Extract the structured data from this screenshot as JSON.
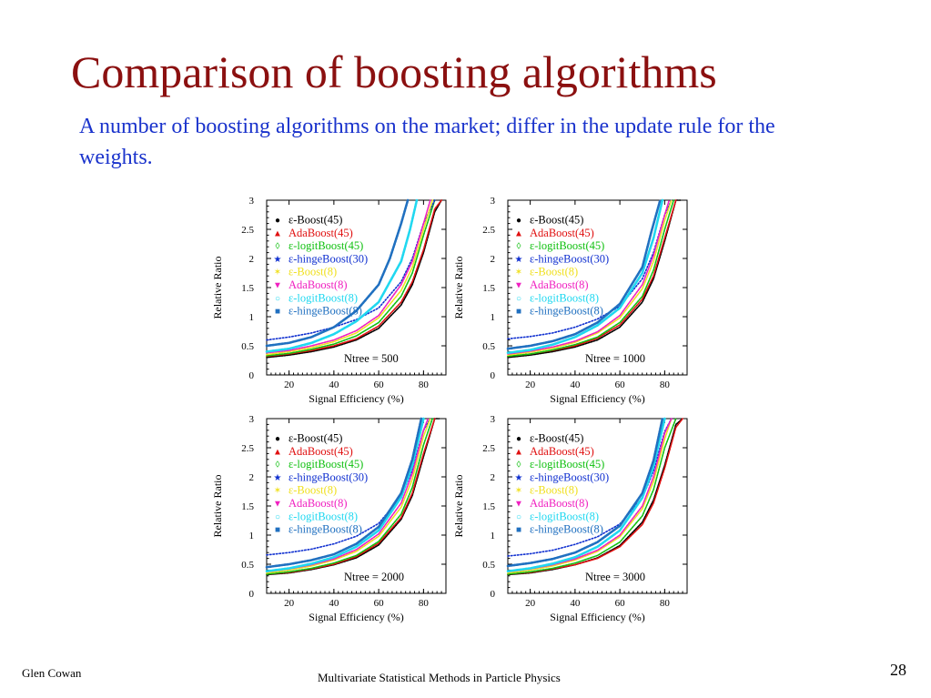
{
  "slide": {
    "title": "Comparison of boosting algorithms",
    "subtitle": "A number of boosting algorithms on the market; differ in the update rule for the weights.",
    "footer_author": "Glen Cowan",
    "footer_course": "Multivariate Statistical Methods in Particle Physics",
    "page_number": "28"
  },
  "chart_data": [
    {
      "type": "line",
      "annotation": "Ntree = 500",
      "xlabel": "Signal Efficiency (%)",
      "ylabel": "Relative Ratio",
      "xlim": [
        10,
        90
      ],
      "ylim": [
        0,
        3
      ],
      "x_ticks": [
        "20",
        "40",
        "60",
        "80"
      ],
      "y_ticks": [
        "0",
        "0.5",
        "1",
        "1.5",
        "2",
        "2.5",
        "3"
      ],
      "legend_position": "top-left",
      "series": [
        {
          "name": "ε-Boost(45)",
          "color": "#000000",
          "marker": "●",
          "x": [
            10,
            20,
            30,
            40,
            50,
            60,
            70,
            75,
            80,
            85,
            88
          ],
          "y": [
            0.3,
            0.34,
            0.4,
            0.48,
            0.6,
            0.8,
            1.2,
            1.55,
            2.1,
            2.8,
            3.0
          ]
        },
        {
          "name": "AdaBoost(45)",
          "color": "#e01010",
          "marker": "▲",
          "x": [
            10,
            20,
            30,
            40,
            50,
            60,
            70,
            75,
            80,
            85,
            88
          ],
          "y": [
            0.32,
            0.36,
            0.42,
            0.5,
            0.62,
            0.84,
            1.25,
            1.6,
            2.15,
            2.85,
            3.0
          ]
        },
        {
          "name": "ε-logitBoost(45)",
          "color": "#10c010",
          "marker": "◊",
          "x": [
            10,
            20,
            30,
            40,
            50,
            60,
            70,
            75,
            80,
            85
          ],
          "y": [
            0.33,
            0.37,
            0.44,
            0.53,
            0.67,
            0.9,
            1.35,
            1.75,
            2.4,
            3.0
          ]
        },
        {
          "name": "ε-hingeBoost(30)",
          "color": "#1030d0",
          "marker": "★",
          "x": [
            10,
            20,
            30,
            40,
            50,
            60,
            70,
            75,
            80,
            85
          ],
          "y": [
            0.6,
            0.65,
            0.72,
            0.82,
            0.95,
            1.15,
            1.6,
            2.0,
            2.6,
            3.0
          ]
        },
        {
          "name": "ε-Boost(8)",
          "color": "#f0e020",
          "marker": "✶",
          "x": [
            10,
            20,
            30,
            40,
            50,
            60,
            70,
            75,
            80,
            84
          ],
          "y": [
            0.35,
            0.4,
            0.47,
            0.57,
            0.72,
            0.98,
            1.45,
            1.85,
            2.5,
            3.0
          ]
        },
        {
          "name": "AdaBoost(8)",
          "color": "#f020c0",
          "marker": "▼",
          "x": [
            10,
            20,
            30,
            40,
            50,
            60,
            70,
            75,
            80,
            83
          ],
          "y": [
            0.38,
            0.42,
            0.5,
            0.6,
            0.76,
            1.02,
            1.55,
            1.95,
            2.6,
            3.0
          ]
        },
        {
          "name": "ε-logitBoost(8)",
          "color": "#20d8f0",
          "marker": "○",
          "x": [
            10,
            20,
            30,
            40,
            50,
            60,
            70,
            74,
            77
          ],
          "y": [
            0.4,
            0.45,
            0.55,
            0.7,
            0.92,
            1.25,
            1.95,
            2.5,
            3.0
          ]
        },
        {
          "name": "ε-hingeBoost(8)",
          "color": "#2070c0",
          "marker": "■",
          "x": [
            10,
            20,
            30,
            40,
            50,
            60,
            65,
            70,
            73
          ],
          "y": [
            0.5,
            0.55,
            0.65,
            0.82,
            1.1,
            1.55,
            2.0,
            2.6,
            3.0
          ]
        }
      ]
    },
    {
      "type": "line",
      "annotation": "Ntree = 1000",
      "xlabel": "Signal Efficiency (%)",
      "ylabel": "Relative Ratio",
      "xlim": [
        10,
        90
      ],
      "ylim": [
        0,
        3
      ],
      "x_ticks": [
        "20",
        "40",
        "60",
        "80"
      ],
      "y_ticks": [
        "0",
        "0.5",
        "1",
        "1.5",
        "2",
        "2.5",
        "3"
      ],
      "legend_position": "top-left",
      "series": [
        {
          "name": "ε-Boost(45)",
          "color": "#000000",
          "marker": "●",
          "x": [
            10,
            20,
            30,
            40,
            50,
            60,
            70,
            75,
            80,
            85,
            87
          ],
          "y": [
            0.3,
            0.34,
            0.4,
            0.48,
            0.6,
            0.82,
            1.25,
            1.65,
            2.3,
            3.0,
            3.0
          ]
        },
        {
          "name": "AdaBoost(45)",
          "color": "#e01010",
          "marker": "▲",
          "x": [
            10,
            20,
            30,
            40,
            50,
            60,
            70,
            75,
            80,
            85
          ],
          "y": [
            0.32,
            0.36,
            0.42,
            0.5,
            0.63,
            0.86,
            1.3,
            1.7,
            2.35,
            3.0
          ]
        },
        {
          "name": "ε-logitBoost(45)",
          "color": "#10c010",
          "marker": "◊",
          "x": [
            10,
            20,
            30,
            40,
            50,
            60,
            70,
            75,
            80,
            84
          ],
          "y": [
            0.32,
            0.36,
            0.43,
            0.52,
            0.65,
            0.9,
            1.35,
            1.8,
            2.5,
            3.0
          ]
        },
        {
          "name": "ε-hingeBoost(30)",
          "color": "#1030d0",
          "marker": "★",
          "x": [
            10,
            20,
            30,
            40,
            50,
            60,
            70,
            75,
            80,
            83
          ],
          "y": [
            0.62,
            0.66,
            0.72,
            0.82,
            0.96,
            1.18,
            1.65,
            2.1,
            2.75,
            3.0
          ]
        },
        {
          "name": "ε-Boost(8)",
          "color": "#f0e020",
          "marker": "✶",
          "x": [
            10,
            20,
            30,
            40,
            50,
            60,
            70,
            75,
            80,
            83
          ],
          "y": [
            0.34,
            0.39,
            0.46,
            0.56,
            0.72,
            0.98,
            1.48,
            1.95,
            2.65,
            3.0
          ]
        },
        {
          "name": "AdaBoost(8)",
          "color": "#f020c0",
          "marker": "▼",
          "x": [
            10,
            20,
            30,
            40,
            50,
            60,
            70,
            75,
            80,
            82
          ],
          "y": [
            0.36,
            0.41,
            0.48,
            0.58,
            0.74,
            1.02,
            1.55,
            2.05,
            2.75,
            3.0
          ]
        },
        {
          "name": "ε-logitBoost(8)",
          "color": "#20d8f0",
          "marker": "○",
          "x": [
            10,
            20,
            30,
            40,
            50,
            60,
            70,
            75,
            79
          ],
          "y": [
            0.38,
            0.43,
            0.52,
            0.65,
            0.85,
            1.15,
            1.75,
            2.35,
            3.0
          ]
        },
        {
          "name": "ε-hingeBoost(8)",
          "color": "#2070c0",
          "marker": "■",
          "x": [
            10,
            20,
            30,
            40,
            50,
            60,
            70,
            74,
            78
          ],
          "y": [
            0.45,
            0.5,
            0.58,
            0.7,
            0.9,
            1.22,
            1.85,
            2.45,
            3.0
          ]
        }
      ]
    },
    {
      "type": "line",
      "annotation": "Ntree = 2000",
      "xlabel": "Signal Efficiency (%)",
      "ylabel": "Relative Ratio",
      "xlim": [
        10,
        90
      ],
      "ylim": [
        0,
        3
      ],
      "x_ticks": [
        "20",
        "40",
        "60",
        "80"
      ],
      "y_ticks": [
        "0",
        "0.5",
        "1",
        "1.5",
        "2",
        "2.5",
        "3"
      ],
      "legend_position": "top-left",
      "series": [
        {
          "name": "ε-Boost(45)",
          "color": "#000000",
          "marker": "●",
          "x": [
            10,
            20,
            30,
            40,
            50,
            60,
            70,
            75,
            80,
            85,
            87
          ],
          "y": [
            0.32,
            0.35,
            0.41,
            0.49,
            0.61,
            0.83,
            1.27,
            1.68,
            2.35,
            3.0,
            3.0
          ]
        },
        {
          "name": "AdaBoost(45)",
          "color": "#e01010",
          "marker": "▲",
          "x": [
            10,
            20,
            30,
            40,
            50,
            60,
            70,
            75,
            80,
            85
          ],
          "y": [
            0.33,
            0.36,
            0.42,
            0.5,
            0.63,
            0.86,
            1.3,
            1.72,
            2.4,
            3.0
          ]
        },
        {
          "name": "ε-logitBoost(45)",
          "color": "#10c010",
          "marker": "◊",
          "x": [
            10,
            20,
            30,
            40,
            50,
            60,
            70,
            75,
            80,
            84
          ],
          "y": [
            0.33,
            0.37,
            0.43,
            0.52,
            0.65,
            0.89,
            1.36,
            1.82,
            2.55,
            3.0
          ]
        },
        {
          "name": "ε-hingeBoost(30)",
          "color": "#1030d0",
          "marker": "★",
          "x": [
            10,
            20,
            30,
            40,
            50,
            60,
            70,
            75,
            80,
            83
          ],
          "y": [
            0.66,
            0.7,
            0.76,
            0.85,
            0.98,
            1.2,
            1.66,
            2.12,
            2.8,
            3.0
          ]
        },
        {
          "name": "ε-Boost(8)",
          "color": "#f0e020",
          "marker": "✶",
          "x": [
            10,
            20,
            30,
            40,
            50,
            60,
            70,
            75,
            80,
            83
          ],
          "y": [
            0.35,
            0.4,
            0.47,
            0.57,
            0.72,
            0.98,
            1.48,
            1.96,
            2.7,
            3.0
          ]
        },
        {
          "name": "AdaBoost(8)",
          "color": "#f020c0",
          "marker": "▼",
          "x": [
            10,
            20,
            30,
            40,
            50,
            60,
            70,
            75,
            80,
            82
          ],
          "y": [
            0.37,
            0.42,
            0.49,
            0.59,
            0.75,
            1.02,
            1.55,
            2.06,
            2.8,
            3.0
          ]
        },
        {
          "name": "ε-logitBoost(8)",
          "color": "#20d8f0",
          "marker": "○",
          "x": [
            10,
            20,
            30,
            40,
            50,
            60,
            70,
            75,
            80
          ],
          "y": [
            0.38,
            0.43,
            0.51,
            0.62,
            0.8,
            1.08,
            1.65,
            2.2,
            3.0
          ]
        },
        {
          "name": "ε-hingeBoost(8)",
          "color": "#2070c0",
          "marker": "■",
          "x": [
            10,
            20,
            30,
            40,
            50,
            60,
            70,
            75,
            79
          ],
          "y": [
            0.45,
            0.5,
            0.57,
            0.67,
            0.85,
            1.14,
            1.72,
            2.3,
            3.0
          ]
        }
      ]
    },
    {
      "type": "line",
      "annotation": "Ntree = 3000",
      "xlabel": "Signal Efficiency (%)",
      "ylabel": "Relative Ratio",
      "xlim": [
        10,
        90
      ],
      "ylim": [
        0,
        3
      ],
      "x_ticks": [
        "20",
        "40",
        "60",
        "80"
      ],
      "y_ticks": [
        "0",
        "0.5",
        "1",
        "1.5",
        "2",
        "2.5",
        "3"
      ],
      "legend_position": "top-left",
      "series": [
        {
          "name": "ε-Boost(45)",
          "color": "#000000",
          "marker": "●",
          "x": [
            10,
            20,
            30,
            40,
            50,
            60,
            70,
            75,
            80,
            85,
            88
          ],
          "y": [
            0.32,
            0.35,
            0.41,
            0.49,
            0.61,
            0.82,
            1.22,
            1.6,
            2.2,
            2.9,
            3.0
          ]
        },
        {
          "name": "AdaBoost(45)",
          "color": "#e01010",
          "marker": "▲",
          "x": [
            10,
            20,
            30,
            40,
            50,
            60,
            70,
            75,
            80,
            85,
            88
          ],
          "y": [
            0.33,
            0.36,
            0.42,
            0.49,
            0.6,
            0.8,
            1.18,
            1.55,
            2.15,
            2.85,
            3.0
          ]
        },
        {
          "name": "ε-logitBoost(45)",
          "color": "#10c010",
          "marker": "◊",
          "x": [
            10,
            20,
            30,
            40,
            50,
            60,
            70,
            75,
            80,
            85
          ],
          "y": [
            0.33,
            0.37,
            0.43,
            0.52,
            0.65,
            0.88,
            1.33,
            1.78,
            2.5,
            3.0
          ]
        },
        {
          "name": "ε-hingeBoost(30)",
          "color": "#1030d0",
          "marker": "★",
          "x": [
            10,
            20,
            30,
            40,
            50,
            60,
            70,
            75,
            80,
            83
          ],
          "y": [
            0.64,
            0.68,
            0.74,
            0.84,
            0.97,
            1.19,
            1.64,
            2.1,
            2.78,
            3.0
          ]
        },
        {
          "name": "ε-Boost(8)",
          "color": "#f0e020",
          "marker": "✶",
          "x": [
            10,
            20,
            30,
            40,
            50,
            60,
            70,
            75,
            80,
            83
          ],
          "y": [
            0.35,
            0.4,
            0.47,
            0.57,
            0.72,
            0.97,
            1.45,
            1.92,
            2.65,
            3.0
          ]
        },
        {
          "name": "AdaBoost(8)",
          "color": "#f020c0",
          "marker": "▼",
          "x": [
            10,
            20,
            30,
            40,
            50,
            60,
            70,
            75,
            80,
            83
          ],
          "y": [
            0.37,
            0.42,
            0.49,
            0.59,
            0.74,
            1.0,
            1.5,
            2.0,
            2.75,
            3.0
          ]
        },
        {
          "name": "ε-logitBoost(8)",
          "color": "#20d8f0",
          "marker": "○",
          "x": [
            10,
            20,
            30,
            40,
            50,
            60,
            70,
            75,
            80
          ],
          "y": [
            0.38,
            0.43,
            0.51,
            0.62,
            0.8,
            1.08,
            1.64,
            2.18,
            3.0
          ]
        },
        {
          "name": "ε-hingeBoost(8)",
          "color": "#2070c0",
          "marker": "■",
          "x": [
            10,
            20,
            30,
            40,
            50,
            60,
            70,
            75,
            79
          ],
          "y": [
            0.47,
            0.52,
            0.59,
            0.7,
            0.88,
            1.16,
            1.72,
            2.28,
            3.0
          ]
        }
      ]
    }
  ]
}
